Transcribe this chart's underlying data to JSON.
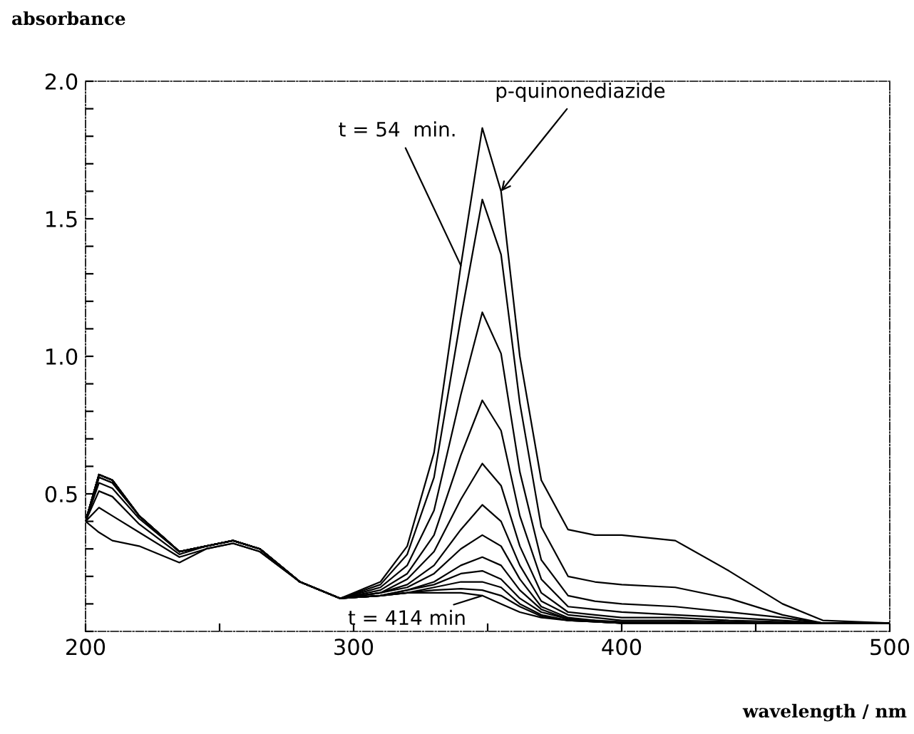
{
  "chart_data": {
    "type": "line",
    "xlabel": "wavelength / nm",
    "ylabel": "absorbance",
    "x": [
      200,
      205,
      210,
      220,
      235,
      245,
      255,
      265,
      280,
      295,
      310,
      320,
      330,
      340,
      348,
      355,
      362,
      370,
      380,
      390,
      400,
      420,
      440,
      460,
      475,
      500
    ],
    "series": [
      {
        "color": "#000000",
        "values": [
          0.4,
          0.36,
          0.33,
          0.31,
          0.25,
          0.3,
          0.32,
          0.29,
          0.18,
          0.12,
          0.18,
          0.31,
          0.65,
          1.33,
          1.83,
          1.6,
          1.0,
          0.55,
          0.37,
          0.35,
          0.35,
          0.33,
          0.22,
          0.1,
          0.04,
          0.03
        ]
      },
      {
        "color": "#000000",
        "values": [
          0.4,
          0.45,
          0.42,
          0.36,
          0.27,
          0.3,
          0.32,
          0.29,
          0.18,
          0.12,
          0.17,
          0.28,
          0.56,
          1.14,
          1.57,
          1.37,
          0.83,
          0.38,
          0.2,
          0.18,
          0.17,
          0.16,
          0.12,
          0.06,
          0.03,
          0.03
        ]
      },
      {
        "color": "#000000",
        "values": [
          0.4,
          0.51,
          0.49,
          0.39,
          0.28,
          0.31,
          0.33,
          0.3,
          0.18,
          0.12,
          0.16,
          0.24,
          0.44,
          0.86,
          1.16,
          1.01,
          0.58,
          0.26,
          0.13,
          0.11,
          0.1,
          0.09,
          0.07,
          0.05,
          0.03,
          0.03
        ]
      },
      {
        "color": "#000000",
        "values": [
          0.4,
          0.54,
          0.52,
          0.41,
          0.29,
          0.31,
          0.33,
          0.3,
          0.18,
          0.12,
          0.15,
          0.21,
          0.35,
          0.64,
          0.84,
          0.73,
          0.42,
          0.19,
          0.09,
          0.08,
          0.07,
          0.06,
          0.05,
          0.04,
          0.03,
          0.03
        ]
      },
      {
        "color": "#000000",
        "values": [
          0.4,
          0.56,
          0.54,
          0.42,
          0.29,
          0.31,
          0.33,
          0.3,
          0.18,
          0.12,
          0.14,
          0.19,
          0.29,
          0.48,
          0.61,
          0.53,
          0.31,
          0.14,
          0.07,
          0.06,
          0.05,
          0.05,
          0.04,
          0.035,
          0.03,
          0.03
        ]
      },
      {
        "color": "#000000",
        "values": [
          0.4,
          0.56,
          0.54,
          0.42,
          0.29,
          0.31,
          0.33,
          0.3,
          0.18,
          0.12,
          0.14,
          0.17,
          0.24,
          0.37,
          0.46,
          0.4,
          0.24,
          0.11,
          0.06,
          0.05,
          0.04,
          0.04,
          0.035,
          0.03,
          0.03,
          0.03
        ]
      },
      {
        "color": "#000000",
        "values": [
          0.4,
          0.57,
          0.55,
          0.42,
          0.29,
          0.31,
          0.33,
          0.3,
          0.18,
          0.12,
          0.14,
          0.16,
          0.21,
          0.3,
          0.35,
          0.31,
          0.19,
          0.09,
          0.05,
          0.04,
          0.035,
          0.035,
          0.03,
          0.03,
          0.03,
          0.03
        ]
      },
      {
        "color": "#000000",
        "values": [
          0.4,
          0.57,
          0.55,
          0.42,
          0.29,
          0.31,
          0.33,
          0.3,
          0.18,
          0.12,
          0.13,
          0.15,
          0.18,
          0.24,
          0.27,
          0.24,
          0.15,
          0.08,
          0.045,
          0.04,
          0.03,
          0.03,
          0.03,
          0.03,
          0.03,
          0.03
        ]
      },
      {
        "color": "#000000",
        "values": [
          0.4,
          0.57,
          0.55,
          0.42,
          0.29,
          0.31,
          0.33,
          0.3,
          0.18,
          0.12,
          0.13,
          0.15,
          0.17,
          0.21,
          0.22,
          0.19,
          0.12,
          0.07,
          0.045,
          0.035,
          0.03,
          0.03,
          0.03,
          0.03,
          0.03,
          0.03
        ]
      },
      {
        "color": "#000000",
        "values": [
          0.4,
          0.57,
          0.55,
          0.42,
          0.29,
          0.31,
          0.33,
          0.3,
          0.18,
          0.12,
          0.13,
          0.14,
          0.16,
          0.18,
          0.18,
          0.16,
          0.1,
          0.06,
          0.04,
          0.035,
          0.03,
          0.03,
          0.03,
          0.03,
          0.03,
          0.03
        ]
      },
      {
        "color": "#000000",
        "values": [
          0.4,
          0.57,
          0.55,
          0.42,
          0.29,
          0.31,
          0.33,
          0.3,
          0.18,
          0.12,
          0.13,
          0.14,
          0.15,
          0.155,
          0.15,
          0.13,
          0.09,
          0.055,
          0.04,
          0.035,
          0.03,
          0.03,
          0.03,
          0.03,
          0.03,
          0.03
        ]
      },
      {
        "color": "#000000",
        "values": [
          0.4,
          0.57,
          0.55,
          0.42,
          0.29,
          0.31,
          0.33,
          0.3,
          0.18,
          0.12,
          0.13,
          0.14,
          0.14,
          0.14,
          0.13,
          0.1,
          0.07,
          0.05,
          0.04,
          0.035,
          0.03,
          0.03,
          0.03,
          0.03,
          0.03,
          0.03
        ]
      }
    ],
    "xlim": [
      200,
      500
    ],
    "xticks": [
      200,
      {
        "value": 250,
        "label": null
      },
      300,
      {
        "value": 350,
        "label": null
      },
      400,
      {
        "value": 450,
        "label": null
      },
      500
    ],
    "ylim": [
      0,
      2.0
    ],
    "yticks": [
      {
        "value": 0,
        "label": null
      },
      {
        "value": 0.1,
        "label": null
      },
      {
        "value": 0.2,
        "label": null
      },
      {
        "value": 0.3,
        "label": null
      },
      {
        "value": 0.4,
        "label": null
      },
      {
        "value": 0.5,
        "label": "0.5"
      },
      {
        "value": 0.6,
        "label": null
      },
      {
        "value": 0.7,
        "label": null
      },
      {
        "value": 0.8,
        "label": null
      },
      {
        "value": 0.9,
        "label": null
      },
      {
        "value": 1.0,
        "label": "1.0"
      },
      {
        "value": 1.1,
        "label": null
      },
      {
        "value": 1.2,
        "label": null
      },
      {
        "value": 1.3,
        "label": null
      },
      {
        "value": 1.4,
        "label": null
      },
      {
        "value": 1.5,
        "label": "1.5"
      },
      {
        "value": 1.6,
        "label": null
      },
      {
        "value": 1.7,
        "label": null
      },
      {
        "value": 1.8,
        "label": null
      },
      {
        "value": 1.9,
        "label": null
      },
      {
        "value": 2.0,
        "label": "2.0"
      }
    ],
    "grid": false,
    "legend": false,
    "marker": "none",
    "line_style": "solid",
    "annotations": [
      {
        "text": "t = 54  min.",
        "x": 340,
        "y": 1.33
      },
      {
        "text": "p-quinonediazide",
        "x": 355,
        "y": 1.6
      },
      {
        "text": "t = 414 min",
        "x": 348,
        "y": 0.13
      }
    ]
  }
}
